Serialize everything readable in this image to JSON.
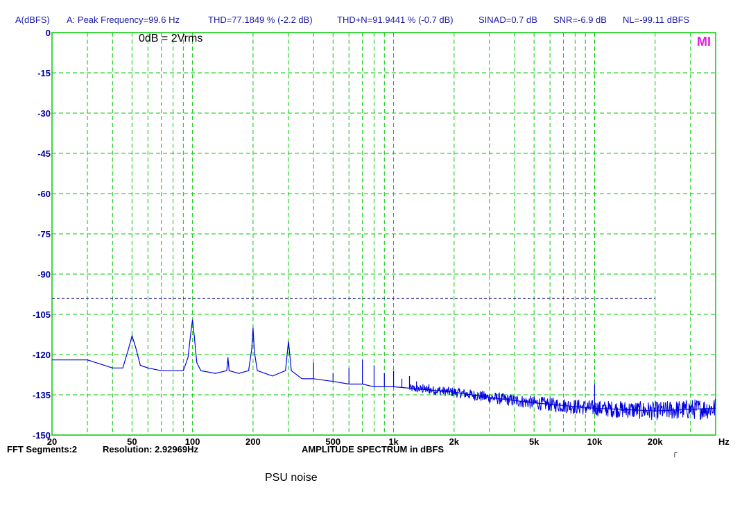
{
  "header": {
    "axis_unit": "A(dBFS)",
    "peak": "A: Peak Frequency=99.6 Hz",
    "thd": "THD=77.1849 % (-2.2 dB)",
    "thdn": "THD+N=91.9441 % (-0.7 dB)",
    "sinad": "SINAD=0.7 dB",
    "snr": "SNR=-6.9 dB",
    "nl": "NL=-99.11 dBFS"
  },
  "annotation": "0dB = 2Vrms",
  "logo": "MI",
  "footer": {
    "fft_segments": "FFT Segments:2",
    "resolution": "Resolution: 2.92969Hz",
    "title": "AMPLITUDE SPECTRUM in dBFS"
  },
  "caption": "PSU noise",
  "colors": {
    "grid": "#00c800",
    "trace": "#0000e0",
    "reference_line": "#000080",
    "axis_text": "#0000a0",
    "logo": "#e020e0"
  },
  "chart_data": {
    "type": "line",
    "x_scale": "log",
    "xlim": [
      20,
      40000
    ],
    "ylim": [
      -150,
      0
    ],
    "grid": true,
    "x_unit_label": "Hz",
    "ylabel": "A(dBFS)",
    "x_tick_labels": [
      {
        "v": 20,
        "t": "20"
      },
      {
        "v": 50,
        "t": "50"
      },
      {
        "v": 100,
        "t": "100"
      },
      {
        "v": 200,
        "t": "200"
      },
      {
        "v": 500,
        "t": "500"
      },
      {
        "v": 1000,
        "t": "1k"
      },
      {
        "v": 2000,
        "t": "2k"
      },
      {
        "v": 5000,
        "t": "5k"
      },
      {
        "v": 10000,
        "t": "10k"
      },
      {
        "v": 20000,
        "t": "20k"
      }
    ],
    "x_grid": [
      20,
      30,
      40,
      50,
      60,
      70,
      80,
      90,
      100,
      200,
      300,
      400,
      500,
      600,
      700,
      800,
      900,
      1000,
      2000,
      3000,
      4000,
      5000,
      6000,
      7000,
      8000,
      9000,
      10000,
      20000,
      30000,
      40000
    ],
    "y_ticks": [
      0,
      -15,
      -30,
      -45,
      -60,
      -75,
      -90,
      -105,
      -120,
      -135,
      -150
    ],
    "reference_line": {
      "y": -99.11,
      "x_start": 20,
      "x_end": 20000
    },
    "series": [
      {
        "x": [
          20,
          30,
          40,
          45,
          48,
          50,
          52,
          55,
          60,
          70,
          80,
          90,
          95,
          98,
          100,
          102,
          105,
          110,
          130,
          148,
          150,
          152,
          170,
          190,
          197,
          200,
          203,
          210,
          250,
          290,
          300,
          310,
          350,
          400,
          500,
          600,
          700,
          800,
          1000,
          2000,
          3000,
          5000,
          10000,
          20000,
          40000
        ],
        "y": [
          -122,
          -122,
          -125,
          -125,
          -118,
          -113,
          -117,
          -124,
          -125,
          -126,
          -126,
          -126,
          -121,
          -112,
          -107,
          -113,
          -123,
          -126,
          -127,
          -126,
          -121,
          -126,
          -127,
          -126,
          -118,
          -110,
          -119,
          -126,
          -128,
          -126,
          -115,
          -126,
          -129,
          -129,
          -130,
          -131,
          -131,
          -132,
          -132,
          -134,
          -136,
          -138,
          -140,
          -141,
          -140
        ]
      }
    ],
    "spurs": [
      {
        "f": 400,
        "y": -123
      },
      {
        "f": 500,
        "y": -127
      },
      {
        "f": 600,
        "y": -125
      },
      {
        "f": 700,
        "y": -122
      },
      {
        "f": 800,
        "y": -124
      },
      {
        "f": 900,
        "y": -127
      },
      {
        "f": 1000,
        "y": -126
      },
      {
        "f": 1100,
        "y": -129
      },
      {
        "f": 1200,
        "y": -128
      },
      {
        "f": 1300,
        "y": -130
      },
      {
        "f": 1400,
        "y": -131
      },
      {
        "f": 1500,
        "y": -131
      },
      {
        "f": 1700,
        "y": -132
      },
      {
        "f": 10000,
        "y": -131
      }
    ]
  }
}
